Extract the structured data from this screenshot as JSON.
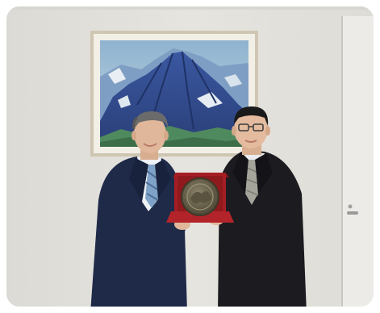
{
  "photo": {
    "scene": "official-meeting",
    "palette": {
      "wall": "#e3e1dc",
      "wall_shade": "#d4d2cc",
      "door": "#ecebe7",
      "frame": "#c9c0ad",
      "mountain": "#2f4a8e",
      "sky": "#a9c4d8",
      "suit_left": "#1e2a48",
      "suit_right": "#1b1b20",
      "plaque_box": "#a51e23",
      "medallion": "#6e6650",
      "skin": "#e0b79a",
      "hair_left": "#6b6b6b",
      "hair_right": "#1a1a1a"
    }
  }
}
